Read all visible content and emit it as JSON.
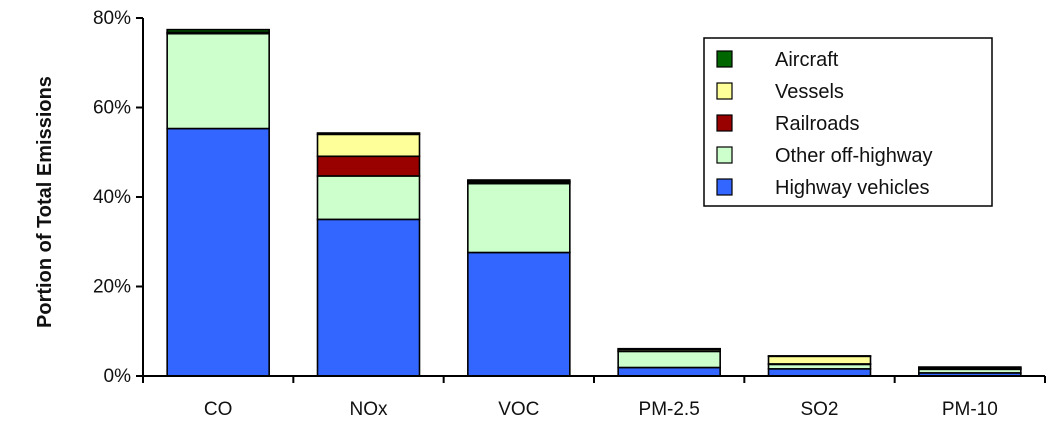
{
  "chart_data": {
    "type": "bar",
    "stacked": true,
    "title": "",
    "xlabel": "",
    "ylabel": "Portion of Total Emissions",
    "ylim": [
      0,
      80
    ],
    "yticks": [
      "0%",
      "20%",
      "40%",
      "60%",
      "80%"
    ],
    "grid": false,
    "legend_position": "top-right",
    "categories": [
      "CO",
      "NOx",
      "VOC",
      "PM-2.5",
      "SO2",
      "PM-10"
    ],
    "series": [
      {
        "name": "Highway vehicles",
        "color": "#3366ff",
        "values": [
          55.3,
          35.0,
          27.6,
          1.9,
          1.6,
          0.7
        ]
      },
      {
        "name": "Other off-highway",
        "color": "#ccffcc",
        "values": [
          21.2,
          9.7,
          15.4,
          3.6,
          1.0,
          0.8
        ]
      },
      {
        "name": "Railroads",
        "color": "#990000",
        "values": [
          0.1,
          4.4,
          0.3,
          0.1,
          0.1,
          0.1
        ]
      },
      {
        "name": "Vessels",
        "color": "#ffff99",
        "values": [
          0.2,
          4.9,
          0.2,
          0.4,
          1.7,
          0.3
        ]
      },
      {
        "name": "Aircraft",
        "color": "#006600",
        "values": [
          0.6,
          0.3,
          0.3,
          0.1,
          0.1,
          0.1
        ]
      }
    ],
    "legend_order": [
      "Aircraft",
      "Vessels",
      "Railroads",
      "Other off-highway",
      "Highway vehicles"
    ]
  }
}
